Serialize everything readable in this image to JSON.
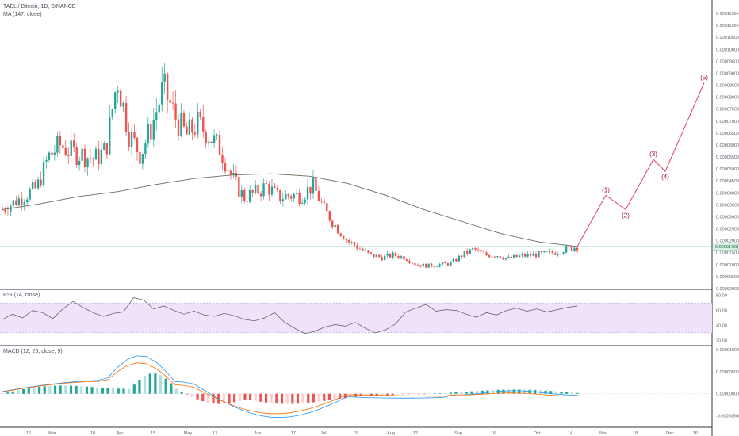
{
  "header": {
    "symbol_line": "TAEL / Bitcoin, 1D, BINANCE",
    "ma_line": "MA (147, close)"
  },
  "rsi_panel": {
    "title": "RSI (14, close)",
    "ticks": [
      "80.00",
      "60.00",
      "40.00",
      "20.00"
    ]
  },
  "macd_panel": {
    "title": "MACD (12, 26, close, 9)",
    "ticks": [
      "0.00001000",
      "0.00000500",
      "0.00000000",
      "-0.00000500"
    ]
  },
  "price_axis": {
    "ticks": [
      "0.00011500",
      "0.00011000",
      "0.00010500",
      "0.00010000",
      "0.00009500",
      "0.00009000",
      "0.00008500",
      "0.00008000",
      "0.00007500",
      "0.00007000",
      "0.00006500",
      "0.00006000",
      "0.00005500",
      "0.00005000",
      "0.00004500",
      "0.00004000",
      "0.00003500",
      "0.00003000",
      "0.00002500",
      "0.00002000",
      "0.00001500",
      "0.00001000",
      "0.00000500",
      "0.00000000"
    ],
    "current_price": "0.00001768"
  },
  "time_axis": {
    "labels": [
      "16",
      "Mar",
      "18",
      "Apr",
      "15",
      "May",
      "13",
      "Jun",
      "17",
      "Jul",
      "15",
      "Aug",
      "12",
      "Sep",
      "16",
      "Oct",
      "14",
      "Nov",
      "18",
      "Dec",
      "16"
    ]
  },
  "colors": {
    "up": "#26a69a",
    "down": "#ef5350",
    "ma": "#6b6b5a",
    "rsi": "#555555",
    "rsi_band": "#efe3fb",
    "macd": "#2196f3",
    "signal": "#ff6d00",
    "projection": "#e0405a",
    "wave_label": "#a01030"
  },
  "chart_data": {
    "type": "candlestick",
    "price_range": [
      0,
      0.000118
    ],
    "ma_label": "MA (147, close)",
    "close_series_approx": [
      3.3e-05,
      3.6e-05,
      3.9e-05,
      4.2e-05,
      5.5e-05,
      6e-05,
      5.7e-05,
      5.6e-05,
      5.4e-05,
      5.8e-05,
      8.8e-05,
      6.5e-05,
      5.6e-05,
      6.8e-05,
      8.4e-05,
      7.2e-05,
      6.4e-05,
      6.9e-05,
      6.4e-05,
      5.8e-05,
      4.6e-05,
      3.8e-05,
      4e-05,
      4.3e-05,
      3.8e-05,
      3.9e-05,
      3.9e-05,
      4.3e-05,
      3.3e-05,
      2.6e-05,
      2e-05,
      1.7e-05,
      1.4e-05,
      1.3e-05,
      1.4e-05,
      1.3e-05,
      1e-05,
      9.5e-06,
      1e-05,
      1.05e-05,
      1.4e-05,
      1.65e-05,
      1.4e-05,
      1.4e-05,
      1.25e-05,
      1.35e-05,
      1.4e-05,
      1.45e-05,
      1.5e-05,
      1.65e-05,
      1.76e-05
    ],
    "ma_series_approx": [
      3.3e-05,
      3.55e-05,
      3.85e-05,
      4.05e-05,
      4.35e-05,
      4.6e-05,
      4.75e-05,
      4.8e-05,
      4.7e-05,
      4.4e-05,
      3.9e-05,
      3.3e-05,
      2.8e-05,
      2.3e-05,
      1.95e-05,
      1.76e-05
    ],
    "projection": [
      {
        "label": "(1)",
        "value": 3.9e-05
      },
      {
        "label": "(2)",
        "value": 3.3e-05
      },
      {
        "label": "(3)",
        "value": 5.4e-05
      },
      {
        "label": "(4)",
        "value": 4.9e-05
      },
      {
        "label": "(5)",
        "value": 8.6e-05
      }
    ],
    "rsi": {
      "range": [
        15,
        85
      ],
      "band": [
        30,
        70
      ],
      "values": [
        48,
        55,
        50,
        60,
        57,
        49,
        62,
        72,
        64,
        57,
        52,
        56,
        58,
        77,
        74,
        62,
        66,
        60,
        55,
        59,
        54,
        52,
        56,
        53,
        48,
        46,
        50,
        57,
        44,
        36,
        29,
        32,
        38,
        41,
        39,
        44,
        36,
        30,
        34,
        42,
        58,
        63,
        68,
        59,
        61,
        60,
        55,
        51,
        57,
        54,
        60,
        63,
        59,
        62,
        58,
        61,
        64,
        66
      ]
    },
    "macd": {
      "range": [
        -7.2e-06,
        1.05e-05
      ]
    }
  }
}
